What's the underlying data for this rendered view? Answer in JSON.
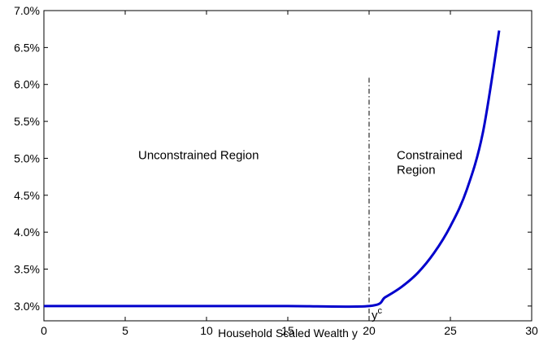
{
  "chart_data": {
    "type": "line",
    "title": "",
    "xlabel": "Household Scaled Wealth y",
    "ylabel": "",
    "xlim": [
      0,
      30
    ],
    "ylim": [
      0.028,
      0.07
    ],
    "x_ticks": [
      0,
      5,
      10,
      15,
      20,
      25,
      30
    ],
    "x_tick_labels": [
      "0",
      "5",
      "10",
      "15",
      "20",
      "25",
      "30"
    ],
    "y_ticks": [
      0.03,
      0.035,
      0.04,
      0.045,
      0.05,
      0.055,
      0.06,
      0.065,
      0.07
    ],
    "y_tick_labels": [
      "3.0%",
      "3.5%",
      "4.0%",
      "4.5%",
      "5.0%",
      "5.5%",
      "6.0%",
      "6.5%",
      "7.0%"
    ],
    "grid": false,
    "series": [
      {
        "color": "#0000cc",
        "x": [
          0,
          5,
          10,
          15,
          20,
          21,
          22,
          23,
          24,
          25,
          26,
          27,
          28
        ],
        "y": [
          0.03,
          0.03,
          0.03,
          0.03,
          0.03,
          0.0312,
          0.0326,
          0.0345,
          0.0372,
          0.0408,
          0.0457,
          0.0535,
          0.0673
        ]
      }
    ],
    "vline": {
      "x": 20,
      "y_top": 0.0609,
      "style": "dash-dot",
      "label": "c"
    },
    "annotations": [
      {
        "lines": [
          "Unconstrained Region"
        ],
        "x": 5.8,
        "y": 0.0499
      },
      {
        "lines": [
          "Constrained",
          "Region"
        ],
        "x": 21.7,
        "y": 0.0499
      }
    ]
  }
}
